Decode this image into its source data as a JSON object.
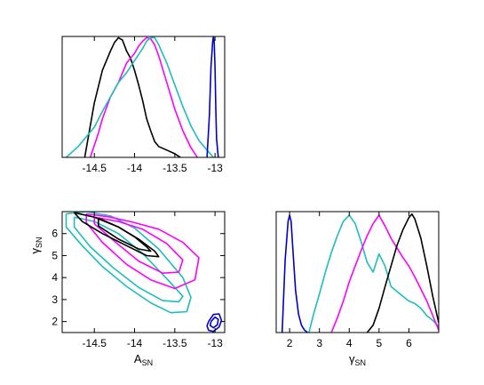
{
  "colors": {
    "black": "#000000",
    "magenta": "#ff00ff",
    "cyan": "#1fbcbc",
    "blue": "#0000cc"
  },
  "chart_data": [
    {
      "id": "A_hist",
      "type": "line",
      "xlabel": "",
      "ylabel": "",
      "xlim": [
        -14.9,
        -12.88
      ],
      "ylim": [
        0,
        1
      ],
      "xticks": [
        "-14.5",
        "-14",
        "-13.5",
        "-13"
      ],
      "xtick_values": [
        -14.5,
        -14,
        -13.5,
        -13
      ],
      "grid": false,
      "series": [
        {
          "color": "black",
          "x": [
            -14.62,
            -14.5,
            -14.4,
            -14.3,
            -14.25,
            -14.2,
            -14.15,
            -14.1,
            -14.05,
            -14.0,
            -13.95,
            -13.9,
            -13.85,
            -13.8,
            -13.75,
            -13.7,
            -13.6,
            -13.5,
            -13.43
          ],
          "y": [
            0.0,
            0.45,
            0.72,
            0.88,
            0.95,
            0.99,
            0.97,
            0.88,
            0.82,
            0.72,
            0.6,
            0.47,
            0.32,
            0.22,
            0.13,
            0.09,
            0.06,
            0.03,
            0.0
          ]
        },
        {
          "color": "magenta",
          "x": [
            -14.55,
            -14.45,
            -14.4,
            -14.3,
            -14.2,
            -14.1,
            -14.0,
            -13.95,
            -13.9,
            -13.85,
            -13.8,
            -13.75,
            -13.7,
            -13.6,
            -13.5,
            -13.4,
            -13.3,
            -13.22
          ],
          "y": [
            0.0,
            0.2,
            0.32,
            0.5,
            0.62,
            0.78,
            0.86,
            0.92,
            0.96,
            0.99,
            0.98,
            0.93,
            0.84,
            0.62,
            0.4,
            0.22,
            0.08,
            0.0
          ]
        },
        {
          "color": "cyan",
          "x": [
            -14.85,
            -14.7,
            -14.5,
            -14.4,
            -14.3,
            -14.2,
            -14.1,
            -14.0,
            -13.9,
            -13.85,
            -13.8,
            -13.75,
            -13.7,
            -13.6,
            -13.5,
            -13.4,
            -13.3,
            -13.2,
            -13.1,
            -13.02
          ],
          "y": [
            0.0,
            0.09,
            0.25,
            0.38,
            0.5,
            0.62,
            0.7,
            0.8,
            0.9,
            0.96,
            0.99,
            0.99,
            0.93,
            0.78,
            0.6,
            0.42,
            0.26,
            0.14,
            0.06,
            0.0
          ]
        },
        {
          "color": "blue",
          "x": [
            -13.1,
            -13.07,
            -13.05,
            -13.03,
            -13.02,
            -13.01,
            -13.0,
            -12.99,
            -12.98,
            -12.96
          ],
          "y": [
            0.0,
            0.35,
            0.75,
            0.95,
            1.0,
            0.95,
            0.75,
            0.4,
            0.15,
            0.0
          ]
        }
      ]
    },
    {
      "id": "gamma_hist",
      "type": "line",
      "xlabel": "γ",
      "xlabel_sub": "SN",
      "ylabel": "",
      "xlim": [
        1.55,
        7.0
      ],
      "ylim": [
        0,
        1
      ],
      "xticks": [
        "2",
        "3",
        "4",
        "5",
        "6"
      ],
      "xtick_values": [
        2,
        3,
        4,
        5,
        6
      ],
      "grid": false,
      "series": [
        {
          "color": "blue",
          "x": [
            1.75,
            1.85,
            1.95,
            2.0,
            2.05,
            2.1,
            2.2,
            2.3,
            2.4,
            2.5,
            2.6
          ],
          "y": [
            0.0,
            0.6,
            0.92,
            0.97,
            0.92,
            0.72,
            0.35,
            0.15,
            0.06,
            0.02,
            0.0
          ]
        },
        {
          "color": "cyan",
          "x": [
            2.65,
            2.8,
            3.0,
            3.2,
            3.4,
            3.6,
            3.8,
            4.0,
            4.2,
            4.4,
            4.6,
            4.8,
            5.0,
            5.2,
            5.4,
            5.6,
            5.8,
            6.0,
            6.2,
            6.4,
            6.6,
            6.8,
            7.0
          ],
          "y": [
            0.0,
            0.15,
            0.32,
            0.5,
            0.66,
            0.8,
            0.92,
            0.97,
            0.9,
            0.75,
            0.58,
            0.5,
            0.65,
            0.55,
            0.38,
            0.34,
            0.3,
            0.26,
            0.24,
            0.2,
            0.14,
            0.1,
            0.05
          ]
        },
        {
          "color": "magenta",
          "x": [
            3.4,
            3.6,
            3.8,
            4.0,
            4.2,
            4.4,
            4.6,
            4.8,
            5.0,
            5.2,
            5.4,
            5.6,
            5.8,
            6.0,
            6.2,
            6.4,
            6.6,
            6.8,
            7.0
          ],
          "y": [
            0.0,
            0.12,
            0.26,
            0.42,
            0.55,
            0.68,
            0.8,
            0.9,
            0.97,
            0.88,
            0.78,
            0.7,
            0.62,
            0.55,
            0.46,
            0.36,
            0.26,
            0.14,
            0.02
          ]
        },
        {
          "color": "black",
          "x": [
            4.6,
            4.8,
            5.0,
            5.2,
            5.4,
            5.6,
            5.8,
            6.0,
            6.1,
            6.2,
            6.4,
            6.6,
            6.8,
            7.0
          ],
          "y": [
            0.0,
            0.06,
            0.2,
            0.38,
            0.55,
            0.72,
            0.85,
            0.95,
            0.98,
            0.94,
            0.78,
            0.55,
            0.3,
            0.08
          ]
        }
      ]
    },
    {
      "id": "joint_contours",
      "type": "line",
      "xlabel": "A",
      "xlabel_sub": "SN",
      "ylabel": "γ",
      "ylabel_sub": "SN",
      "xlim": [
        -14.9,
        -12.88
      ],
      "ylim": [
        1.5,
        7.0
      ],
      "xticks": [
        "-14.5",
        "-14",
        "-13.5",
        "-13"
      ],
      "xtick_values": [
        -14.5,
        -14,
        -13.5,
        -13
      ],
      "yticks": [
        "2",
        "3",
        "4",
        "5",
        "6"
      ],
      "ytick_values": [
        2,
        3,
        4,
        5,
        6
      ],
      "grid": false,
      "series": [
        {
          "color": "cyan",
          "x": [
            -14.85,
            -14.6,
            -14.3,
            -14.0,
            -13.7,
            -13.4,
            -13.3,
            -13.35,
            -13.55,
            -13.8,
            -14.1,
            -14.4,
            -14.65,
            -14.85,
            -14.85
          ],
          "y": [
            6.9,
            7.0,
            6.8,
            6.25,
            5.3,
            4.0,
            3.1,
            2.45,
            2.4,
            2.85,
            3.6,
            4.5,
            5.45,
            6.3,
            6.9
          ]
        },
        {
          "color": "cyan",
          "x": [
            -14.75,
            -14.5,
            -14.2,
            -13.9,
            -13.6,
            -13.4,
            -13.45,
            -13.65,
            -13.95,
            -14.25,
            -14.55,
            -14.75,
            -14.75
          ],
          "y": [
            6.75,
            6.55,
            6.0,
            5.1,
            3.95,
            3.15,
            2.9,
            2.95,
            3.55,
            4.4,
            5.4,
            6.3,
            6.75
          ]
        },
        {
          "color": "magenta",
          "x": [
            -14.6,
            -14.3,
            -14.0,
            -13.7,
            -13.4,
            -13.2,
            -13.25,
            -13.5,
            -13.8,
            -14.1,
            -14.4,
            -14.6,
            -14.6
          ],
          "y": [
            6.9,
            6.75,
            6.5,
            6.2,
            5.6,
            4.9,
            3.9,
            3.5,
            3.9,
            4.6,
            5.6,
            6.5,
            6.9
          ]
        },
        {
          "color": "magenta",
          "x": [
            -14.5,
            -14.2,
            -13.9,
            -13.6,
            -13.4,
            -13.45,
            -13.65,
            -13.95,
            -14.25,
            -14.5,
            -14.5
          ],
          "y": [
            6.75,
            6.55,
            6.2,
            5.55,
            4.8,
            4.25,
            4.2,
            4.75,
            5.65,
            6.45,
            6.75
          ]
        },
        {
          "color": "black",
          "x": [
            -14.75,
            -14.5,
            -14.2,
            -13.95,
            -13.75,
            -13.7,
            -13.85,
            -14.1,
            -14.4,
            -14.65,
            -14.75
          ],
          "y": [
            6.95,
            6.75,
            6.3,
            5.75,
            5.2,
            4.95,
            5.0,
            5.45,
            6.0,
            6.55,
            6.95
          ]
        },
        {
          "color": "black",
          "x": [
            -14.45,
            -14.2,
            -14.0,
            -13.85,
            -13.8,
            -13.95,
            -14.2,
            -14.45,
            -14.45
          ],
          "y": [
            6.7,
            6.3,
            5.85,
            5.4,
            5.2,
            5.3,
            5.75,
            6.35,
            6.7
          ]
        },
        {
          "color": "blue",
          "x": [
            -13.08,
            -13.02,
            -12.95,
            -12.92,
            -12.95,
            -13.02,
            -13.08,
            -13.1,
            -13.08
          ],
          "y": [
            2.0,
            2.32,
            2.35,
            2.05,
            1.75,
            1.55,
            1.6,
            1.8,
            2.0
          ]
        },
        {
          "color": "blue",
          "x": [
            -13.05,
            -13.0,
            -12.96,
            -12.97,
            -13.02,
            -13.06,
            -13.05
          ],
          "y": [
            2.0,
            2.2,
            2.1,
            1.85,
            1.72,
            1.82,
            2.0
          ]
        }
      ]
    }
  ]
}
